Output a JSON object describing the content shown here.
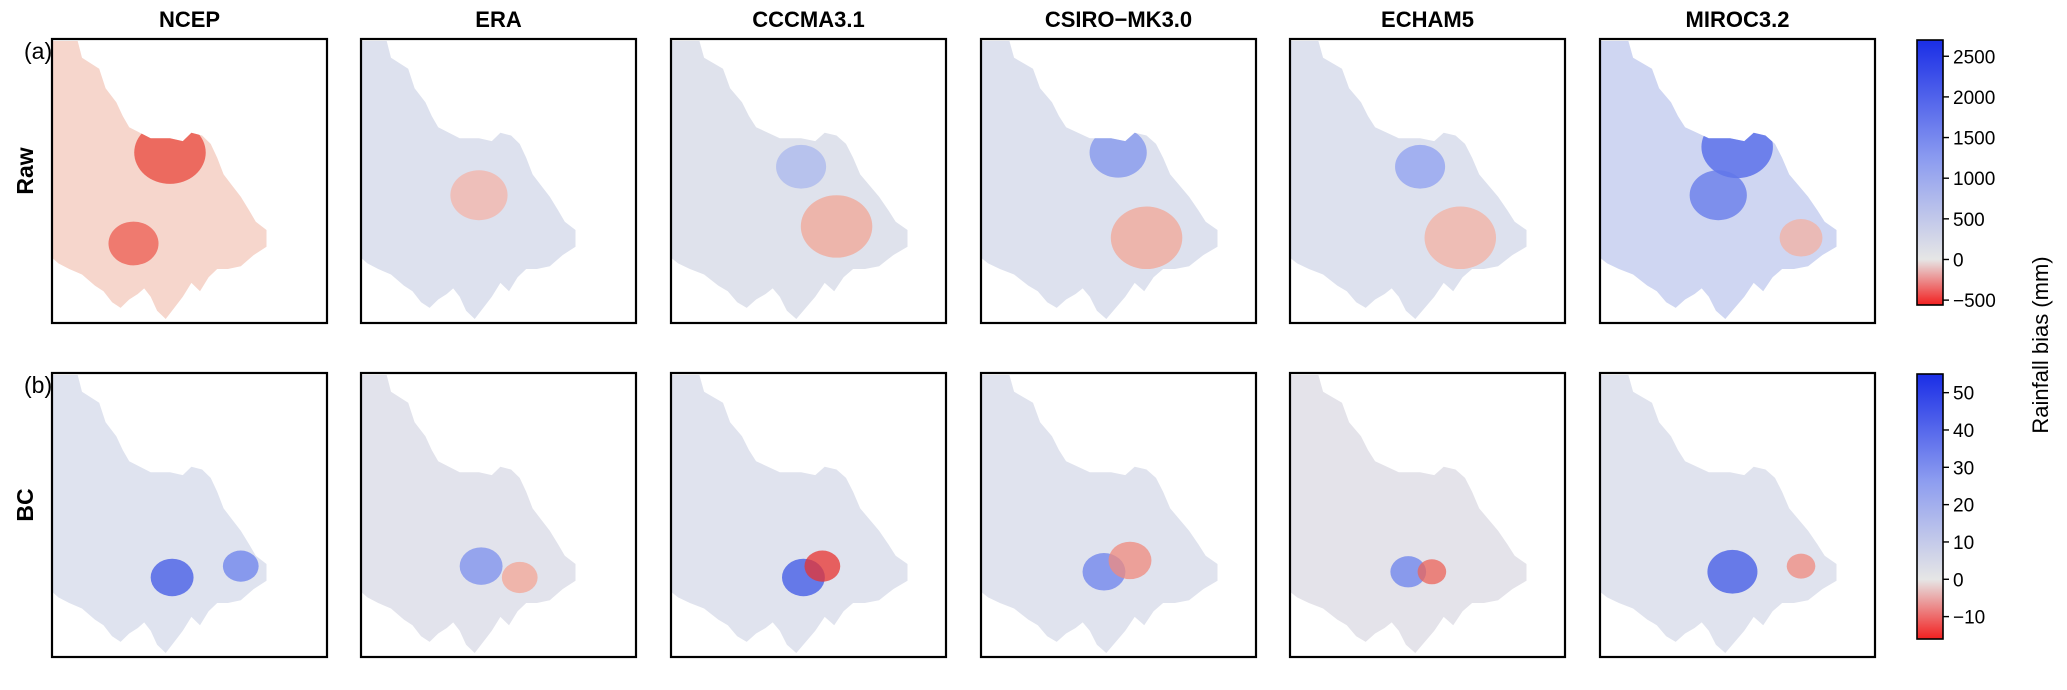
{
  "chart_data": {
    "type": "heatmap",
    "description_rows": [
      {
        "tag": "(a)",
        "label": "Raw"
      },
      {
        "tag": "(b)",
        "label": "BC"
      }
    ],
    "columns": [
      "NCEP",
      "ERA",
      "CCCMA3.1",
      "CSIRO−MK3.0",
      "ECHAM5",
      "MIROC3.2"
    ],
    "colorbars": [
      {
        "row": "Raw",
        "ticks": [
          2500,
          2000,
          1500,
          1000,
          500,
          0,
          -500
        ],
        "tick_labels": [
          "2500",
          "2000",
          "1500",
          "1000",
          "500",
          "0",
          "−500"
        ],
        "range": [
          -560,
          2700
        ]
      },
      {
        "row": "BC",
        "ticks": [
          50,
          40,
          30,
          20,
          10,
          0,
          -10
        ],
        "tick_labels": [
          "50",
          "40",
          "30",
          "20",
          "10",
          "0",
          "−10"
        ],
        "range": [
          -16,
          55
        ]
      }
    ],
    "colorbar_label": "Rainfall bias (mm)",
    "colormap": {
      "negative": "#f22020",
      "zero": "#e6e6e6",
      "positive": "#1a2ee6"
    },
    "grid": false
  }
}
